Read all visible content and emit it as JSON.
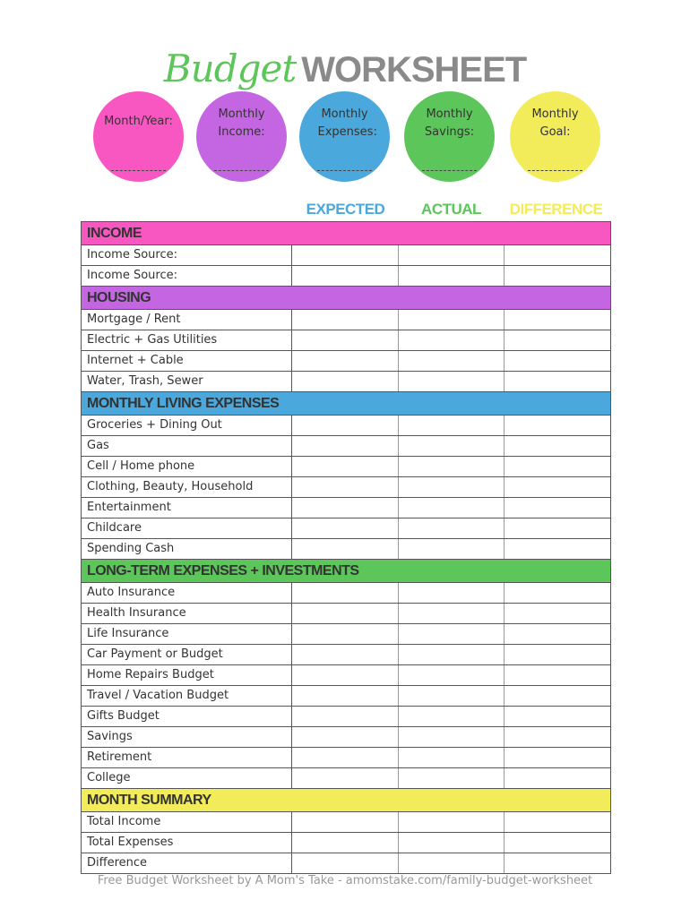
{
  "title": {
    "script": "Budget",
    "bold": "WORKSHEET"
  },
  "circles": [
    {
      "label": "Month/Year:",
      "color": "#f857c1"
    },
    {
      "label": "Monthly Income:",
      "color": "#c466e2"
    },
    {
      "label": "Monthly Expenses:",
      "color": "#4aa8dc"
    },
    {
      "label": "Monthly Savings:",
      "color": "#5cc65a"
    },
    {
      "label": "Monthly Goal:",
      "color": "#f2ec5a"
    }
  ],
  "columns": [
    {
      "label": "EXPECTED",
      "color": "#4aa8dc"
    },
    {
      "label": "ACTUAL",
      "color": "#5cc65a"
    },
    {
      "label": "DIFFERENCE",
      "color": "#f2ec5a"
    }
  ],
  "sections": [
    {
      "title": "INCOME",
      "color": "#f857c1",
      "rows": [
        "Income Source:",
        "Income Source:"
      ]
    },
    {
      "title": "HOUSING",
      "color": "#c466e2",
      "rows": [
        "Mortgage / Rent",
        "Electric + Gas Utilities",
        "Internet + Cable",
        "Water, Trash, Sewer"
      ]
    },
    {
      "title": "MONTHLY LIVING EXPENSES",
      "color": "#4aa8dc",
      "rows": [
        "Groceries + Dining Out",
        "Gas",
        "Cell / Home phone",
        "Clothing, Beauty, Household",
        "Entertainment",
        "Childcare",
        "Spending Cash"
      ]
    },
    {
      "title": "LONG-TERM EXPENSES + INVESTMENTS",
      "color": "#5cc65a",
      "rows": [
        "Auto Insurance",
        "Health Insurance",
        "Life Insurance",
        "Car Payment or Budget",
        "Home Repairs Budget",
        "Travel / Vacation Budget",
        "Gifts Budget",
        "Savings",
        "Retirement",
        "College"
      ]
    },
    {
      "title": "MONTH SUMMARY",
      "color": "#f2ec5a",
      "rows": [
        "Total Income",
        "Total Expenses",
        "Difference"
      ]
    }
  ],
  "footer": "Free Budget Worksheet by A Mom's Take - amomstake.com/family-budget-worksheet"
}
